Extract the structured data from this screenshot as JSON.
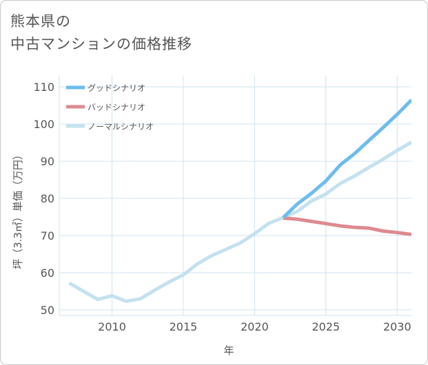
{
  "title": {
    "line1": "熊本県の",
    "line2": "中古マンションの価格推移"
  },
  "chart_data": {
    "type": "line",
    "xlabel": "年",
    "ylabel": "坪（3.3㎡）単価（万円）",
    "xlim": [
      2006.3,
      2031
    ],
    "ylim": [
      48.5,
      113
    ],
    "xticks": [
      2010,
      2015,
      2020,
      2025,
      2030
    ],
    "yticks": [
      50,
      60,
      70,
      80,
      90,
      100,
      110
    ],
    "grid": true,
    "legend_position": "top-left",
    "series": [
      {
        "name": "ノーマルシナリオ",
        "color": "#c5e1ef",
        "x": [
          2007,
          2008,
          2009,
          2010,
          2011,
          2012,
          2013,
          2014,
          2015,
          2016,
          2017,
          2018,
          2019,
          2020,
          2021,
          2022,
          2023,
          2024,
          2025,
          2026,
          2027,
          2028,
          2029,
          2030,
          2031
        ],
        "y": [
          57.2,
          55.0,
          52.8,
          53.8,
          52.3,
          53.0,
          55.3,
          57.5,
          59.4,
          62.4,
          64.6,
          66.3,
          68.0,
          70.5,
          73.3,
          74.8,
          76.5,
          79.3,
          81.2,
          84.0,
          86.0,
          88.3,
          90.5,
          92.9,
          95.1
        ]
      },
      {
        "name": "バッドシナリオ",
        "color": "#dd8a90",
        "x": [
          2022,
          2023,
          2024,
          2025,
          2026,
          2027,
          2028,
          2029,
          2030,
          2031
        ],
        "y": [
          74.7,
          74.4,
          73.8,
          73.2,
          72.6,
          72.2,
          72.0,
          71.2,
          70.8,
          70.3
        ]
      },
      {
        "name": "グッドシナリオ",
        "color": "#6dbcef",
        "x": [
          2022,
          2023,
          2024,
          2025,
          2026,
          2027,
          2028,
          2029,
          2030,
          2031
        ],
        "y": [
          74.8,
          78.5,
          81.4,
          84.7,
          89.0,
          92.0,
          95.5,
          99.0,
          102.6,
          106.5
        ]
      }
    ],
    "legend": [
      "グッドシナリオ",
      "バッドシナリオ",
      "ノーマルシナリオ"
    ]
  }
}
